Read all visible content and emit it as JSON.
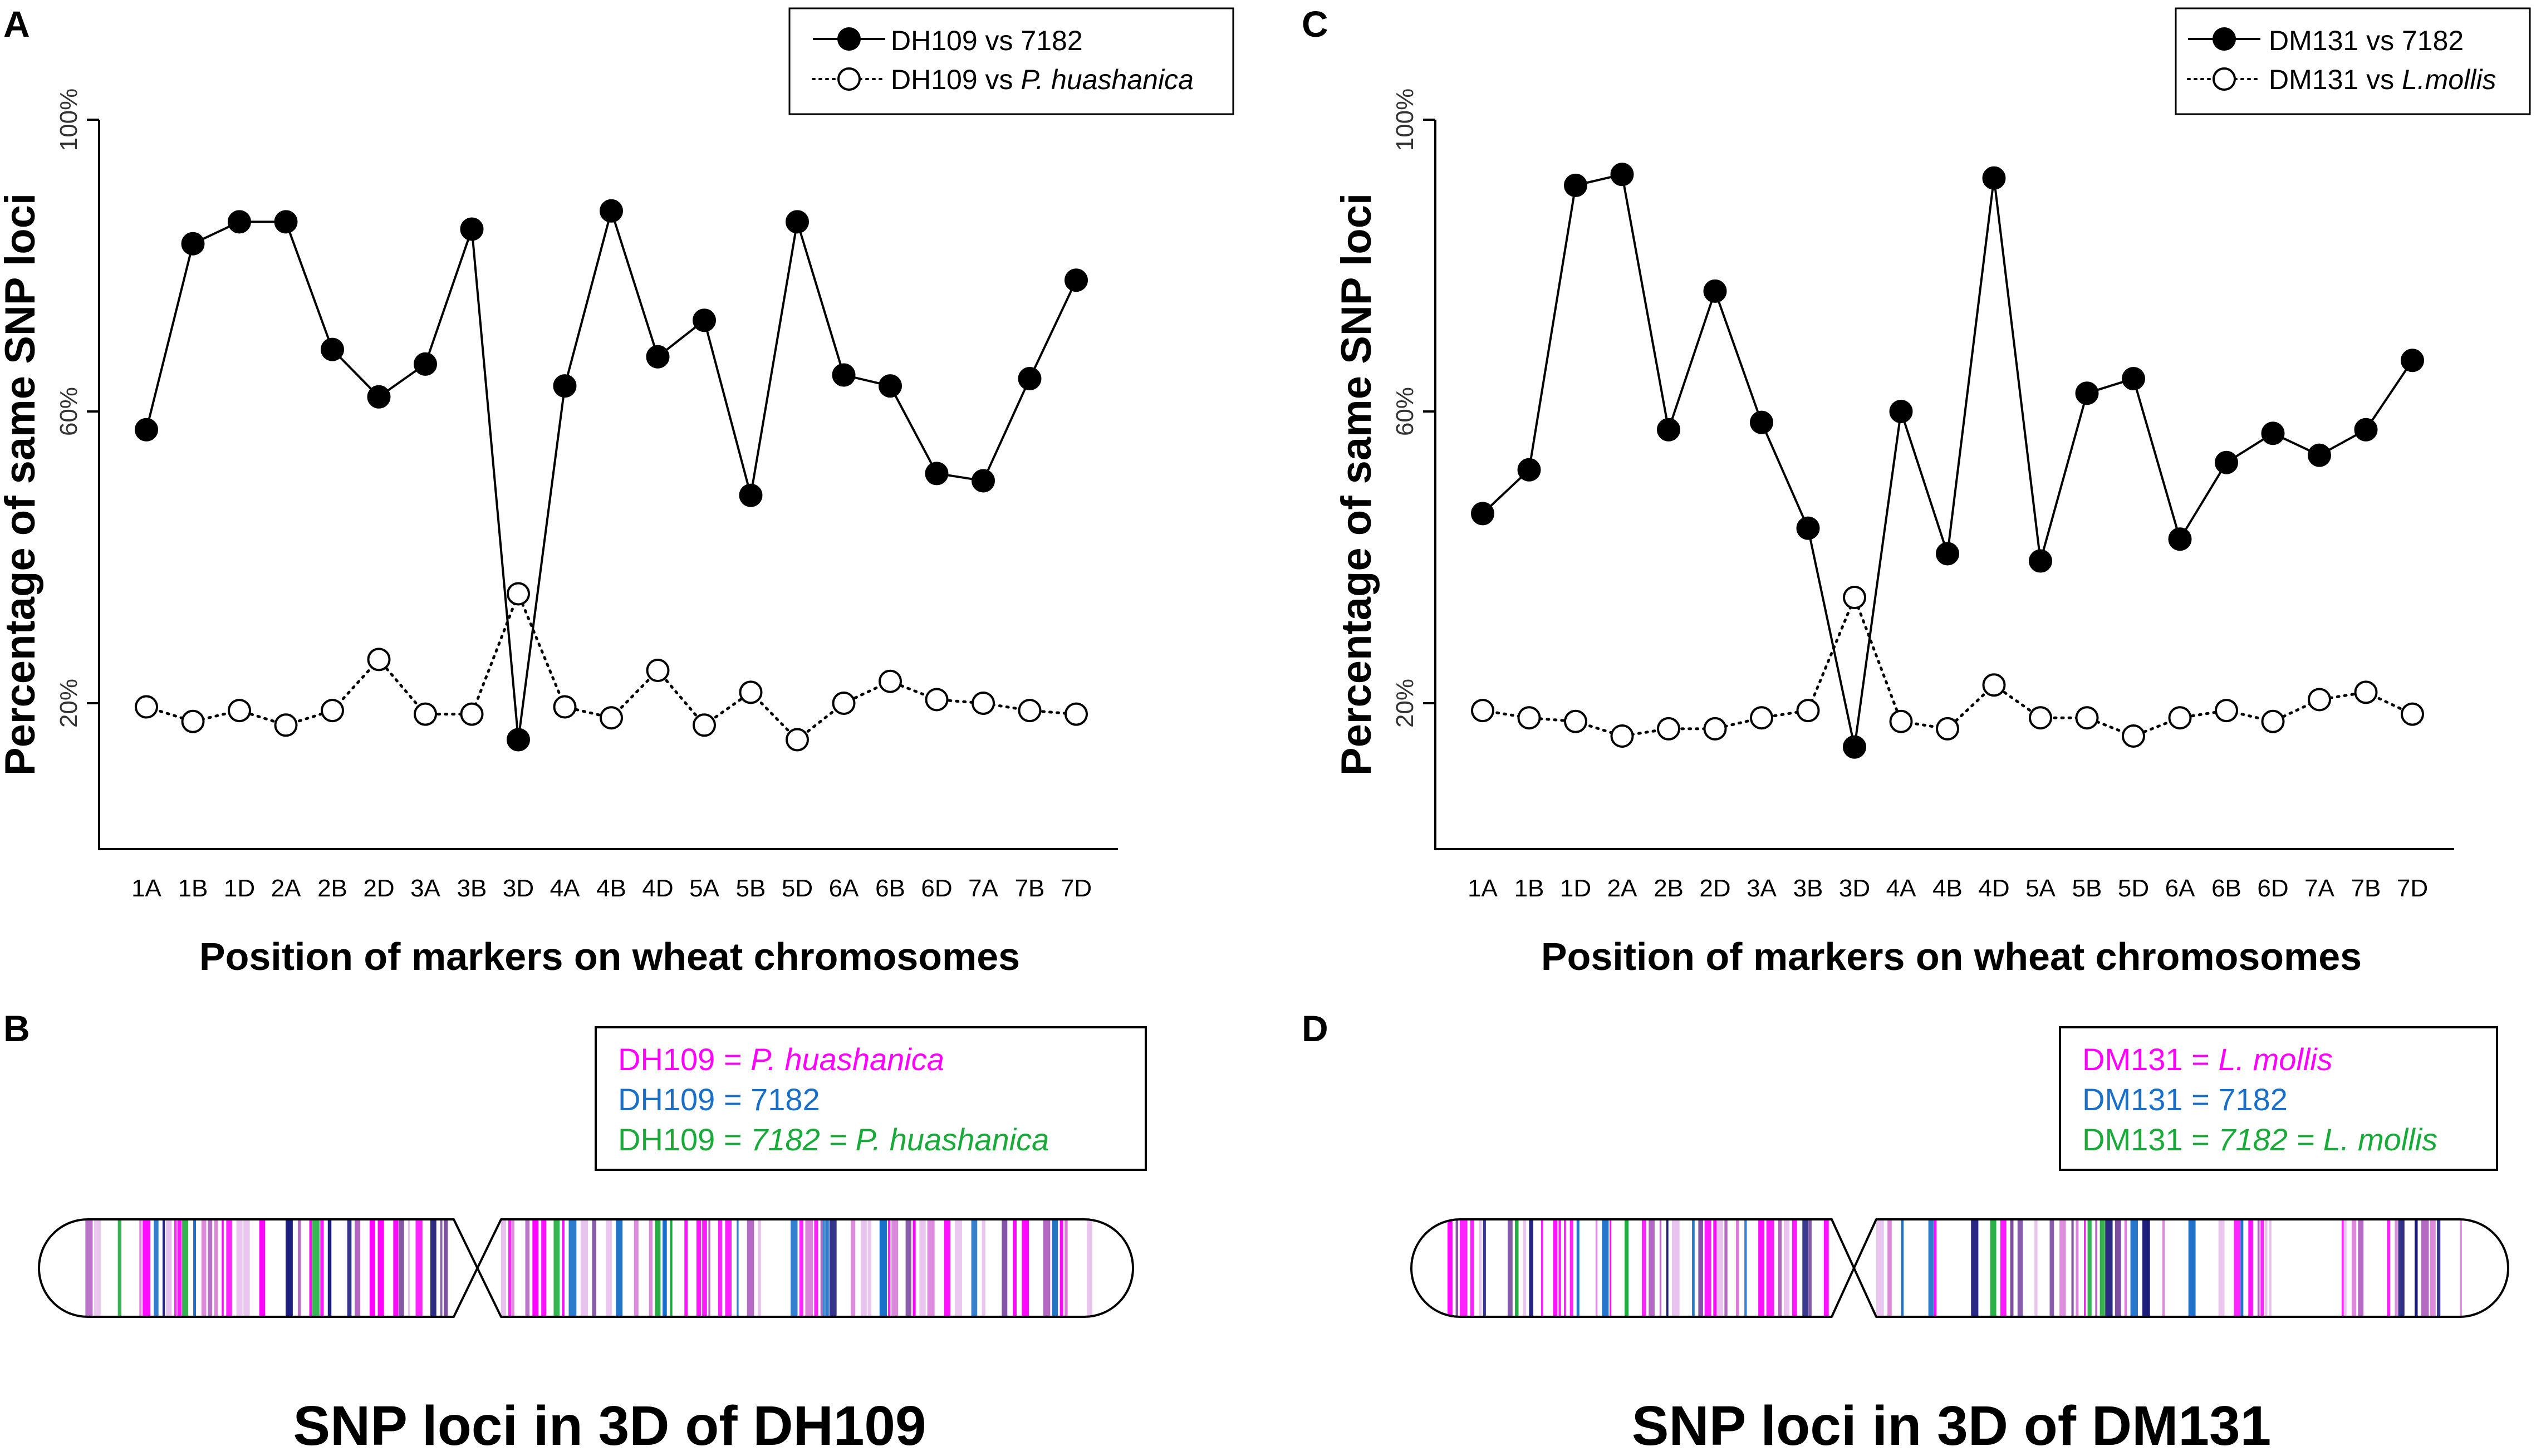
{
  "panel_labels": [
    "A",
    "B",
    "C",
    "D"
  ],
  "colors": {
    "magenta": "#ff00ff",
    "blue": "#1a6fc7",
    "green": "#1aaa3a",
    "navy": "#1a1a7a"
  },
  "chart_data": [
    {
      "type": "line",
      "panel": "A",
      "categories": [
        "1A",
        "1B",
        "1D",
        "2A",
        "2B",
        "2D",
        "3A",
        "3B",
        "3D",
        "4A",
        "4B",
        "4D",
        "5A",
        "5B",
        "5D",
        "6A",
        "6B",
        "6D",
        "7A",
        "7B",
        "7D"
      ],
      "series": [
        {
          "name": "DH109 vs 7182",
          "legend_prefix": "DH109 vs ",
          "legend_suffix": "7182",
          "style": "filled",
          "values": [
            57.5,
            83,
            86,
            86,
            68.5,
            62,
            66.5,
            85,
            15,
            63.5,
            87.5,
            67.5,
            72.5,
            48.5,
            86,
            65,
            63.5,
            51.5,
            50.5,
            64.5,
            78
          ]
        },
        {
          "name": "DH109 vs P. huashanica",
          "legend_prefix": "DH109 vs ",
          "legend_suffix": "P. huashanica",
          "style": "open",
          "values": [
            19.5,
            17.5,
            19,
            17,
            19,
            26,
            18.5,
            18.5,
            35,
            19.5,
            18,
            24.5,
            17,
            21.5,
            15,
            20,
            23,
            20.5,
            20,
            19,
            18.5
          ]
        }
      ],
      "yticks": [
        "20%",
        "60%",
        "100%"
      ],
      "ylim": [
        0,
        100
      ],
      "xlabel": "Position of markers on wheat chromosomes",
      "ylabel": "Percentage of same SNP loci",
      "legend_position": "top-right"
    },
    {
      "type": "line",
      "panel": "C",
      "categories": [
        "1A",
        "1B",
        "1D",
        "2A",
        "2B",
        "2D",
        "3A",
        "3B",
        "3D",
        "4A",
        "4B",
        "4D",
        "5A",
        "5B",
        "5D",
        "6A",
        "6B",
        "6D",
        "7A",
        "7B",
        "7D"
      ],
      "series": [
        {
          "name": "DM131 vs 7182",
          "legend_prefix": "DM131 vs ",
          "legend_suffix": "7182",
          "style": "filled",
          "values": [
            46,
            52,
            91,
            92.5,
            57.5,
            76.5,
            58.5,
            44,
            14,
            60,
            40.5,
            92,
            39.5,
            62.5,
            64.5,
            42.5,
            53,
            57,
            54,
            57.5,
            67
          ]
        },
        {
          "name": "DM131 vs L.mollis",
          "legend_prefix": "DM131 vs ",
          "legend_suffix": "L.mollis",
          "style": "open",
          "values": [
            19,
            18,
            17.5,
            15.5,
            16.5,
            16.5,
            18,
            19,
            34.5,
            17.5,
            16.5,
            22.5,
            18,
            18,
            15.5,
            18,
            19,
            17.5,
            20.5,
            21.5,
            18.5
          ]
        }
      ],
      "yticks": [
        "20%",
        "60%",
        "100%"
      ],
      "ylim": [
        0,
        100
      ],
      "xlabel": "Position of markers on wheat chromosomes",
      "ylabel": "Percentage of same SNP loci",
      "legend_position": "top-right"
    }
  ],
  "chromosome_panels": [
    {
      "panel": "B",
      "legend": [
        {
          "left": "DH109 = ",
          "right": "P. huashanica",
          "color_key": "magenta"
        },
        {
          "left": "DH109 = ",
          "right": "7182",
          "color_key": "blue"
        },
        {
          "left": "DH109 = ",
          "right": "7182 = P. huashanica",
          "color_key": "green"
        }
      ],
      "title": "SNP loci in 3D of DH109"
    },
    {
      "panel": "D",
      "legend": [
        {
          "left": "DM131 = ",
          "right": "L. mollis",
          "color_key": "magenta"
        },
        {
          "left": "DM131 = ",
          "right": "7182",
          "color_key": "blue"
        },
        {
          "left": "DM131 = ",
          "right": "7182 = L. mollis",
          "color_key": "green"
        }
      ],
      "title": "SNP loci in 3D of DM131"
    }
  ]
}
